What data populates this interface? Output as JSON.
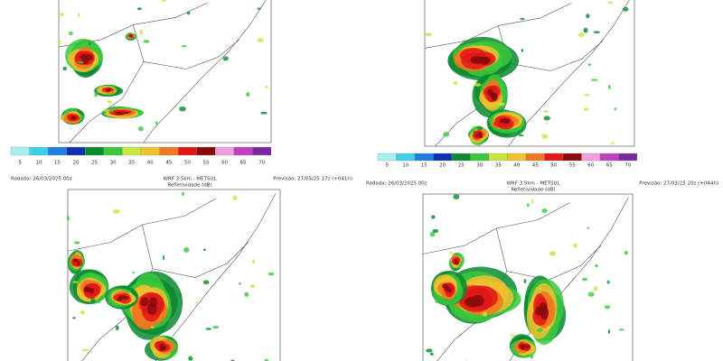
{
  "colorbar": {
    "levels": [
      5,
      10,
      15,
      20,
      25,
      30,
      35,
      40,
      45,
      50,
      55,
      60,
      65,
      70
    ],
    "colors": [
      "#a6f0f0",
      "#3fd0e8",
      "#1e7fe0",
      "#1030b0",
      "#0a8a30",
      "#3cc83c",
      "#c8e640",
      "#f0c030",
      "#f07820",
      "#e01818",
      "#8a0a0a",
      "#f0a0e0",
      "#c040c0",
      "#7a28a0"
    ]
  },
  "bottom_panels": [
    {
      "run": "Rodada: 26/03/2025 00z",
      "model": "WRF 3.5km - METSUL",
      "field": "Refletividade (dB)",
      "forecast": "Previsão: 27/03/25 17z (+041h)"
    },
    {
      "run": "Rodada: 26/03/2025 00z",
      "model": "WRF 3.5km - METSUL",
      "field": "Refletividade (dB)",
      "forecast": "Previsão: 27/03/25 20z (+044h)"
    }
  ]
}
